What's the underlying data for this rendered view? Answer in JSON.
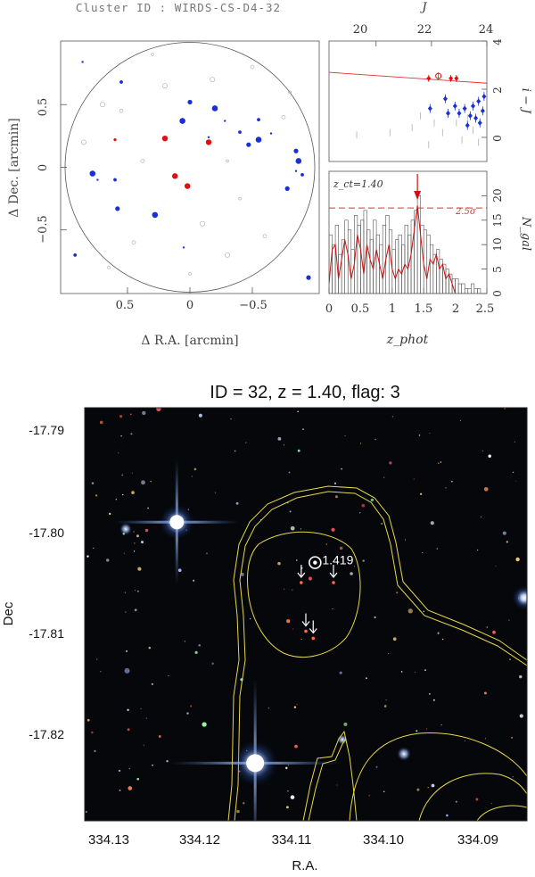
{
  "top_panel": {
    "cluster_label": "Cluster ID : WIRDS-CS-D4-32",
    "sky_map": {
      "xlabel": "Δ R.A. [arcmin]",
      "ylabel": "Δ Dec. [arcmin]",
      "xticks": [
        "0.5",
        "0",
        "−0.5"
      ],
      "yticks": [
        "0.5",
        "0",
        "−0.5"
      ]
    },
    "color_mag": {
      "top_xlabel": "J",
      "top_xticks": [
        "20",
        "22",
        "24"
      ],
      "ylabel": "i − J",
      "yticks": [
        "0",
        "2",
        "4"
      ]
    },
    "zhist": {
      "z_annotation": "z_ct=1.40",
      "sigma_label": "2.5σ",
      "xlabel": "z_phot",
      "ylabel": "N_gal",
      "xticks": [
        "0",
        "0.5",
        "1",
        "1.5",
        "2",
        "2.5"
      ],
      "yticks": [
        "0",
        "5",
        "10",
        "15",
        "20"
      ]
    }
  },
  "bottom_panel": {
    "title": "ID = 32, z = 1.40, flag: 3",
    "xlabel": "R.A.",
    "ylabel": "Dec",
    "xticks": [
      "334.13",
      "334.12",
      "334.11",
      "334.10",
      "334.09"
    ],
    "yticks": [
      "-17.79",
      "-17.80",
      "-17.81",
      "-17.82"
    ],
    "spec_z_label": "1.419"
  },
  "chart_data": [
    {
      "type": "scatter",
      "name_hint": "sky-map",
      "xlim": [
        1.0,
        -1.0
      ],
      "ylim": [
        -1.0,
        1.0
      ],
      "member_color": "#1a2fd6",
      "red_color": "#e01010",
      "field_color": "#aaaaaa",
      "members": [
        {
          "x": 0.86,
          "y": 0.84
        },
        {
          "x": 0.55,
          "y": 0.68
        },
        {
          "x": 0.0,
          "y": 0.52
        },
        {
          "x": -0.2,
          "y": 0.47
        },
        {
          "x": -0.28,
          "y": 0.37
        },
        {
          "x": -0.4,
          "y": 0.28
        },
        {
          "x": -0.47,
          "y": 0.18
        },
        {
          "x": -0.55,
          "y": 0.22
        },
        {
          "x": -0.65,
          "y": 0.27
        },
        {
          "x": -0.55,
          "y": 0.38
        },
        {
          "x": -0.85,
          "y": 0.13
        },
        {
          "x": -0.87,
          "y": 0.05
        },
        {
          "x": -0.85,
          "y": -0.03
        },
        {
          "x": -0.9,
          "y": -0.06
        },
        {
          "x": -0.78,
          "y": -0.17
        },
        {
          "x": 0.78,
          "y": -0.05
        },
        {
          "x": 0.74,
          "y": -0.1
        },
        {
          "x": 0.6,
          "y": -0.1
        },
        {
          "x": 0.58,
          "y": -0.33
        },
        {
          "x": 0.06,
          "y": 0.37
        },
        {
          "x": -0.15,
          "y": 0.24
        },
        {
          "x": 0.92,
          "y": -0.7
        },
        {
          "x": -0.95,
          "y": -0.88
        },
        {
          "x": 0.28,
          "y": -0.38
        },
        {
          "x": 0.05,
          "y": -0.64
        }
      ],
      "red_members": [
        {
          "x": 0.2,
          "y": 0.23
        },
        {
          "x": -0.15,
          "y": 0.2
        },
        {
          "x": 0.12,
          "y": -0.07
        },
        {
          "x": 0.02,
          "y": -0.15
        },
        {
          "x": 0.6,
          "y": 0.22
        }
      ],
      "field": [
        {
          "x": 0.3,
          "y": 0.9
        },
        {
          "x": -0.5,
          "y": 0.8
        },
        {
          "x": 0.7,
          "y": 0.5
        },
        {
          "x": -0.8,
          "y": 0.6
        },
        {
          "x": 0.45,
          "y": -0.6
        },
        {
          "x": -0.3,
          "y": -0.7
        },
        {
          "x": 0.0,
          "y": -0.85
        },
        {
          "x": -0.6,
          "y": -0.55
        },
        {
          "x": 0.85,
          "y": 0.2
        },
        {
          "x": -0.3,
          "y": 0.05
        },
        {
          "x": 0.38,
          "y": 0.05
        },
        {
          "x": -0.1,
          "y": -0.45
        },
        {
          "x": 0.65,
          "y": -0.8
        },
        {
          "x": -0.75,
          "y": 0.4
        },
        {
          "x": 0.2,
          "y": 0.65
        },
        {
          "x": -0.4,
          "y": -0.25
        },
        {
          "x": 0.55,
          "y": 0.45
        },
        {
          "x": -0.18,
          "y": 0.7
        }
      ]
    },
    {
      "type": "scatter",
      "name_hint": "color-magnitude",
      "xlim": [
        18.3,
        24.0
      ],
      "ylim": [
        -1.0,
        4.0
      ],
      "red_sequence": {
        "x": [
          18.3,
          24.0
        ],
        "y": [
          2.7,
          2.25
        ]
      },
      "red_points": [
        {
          "x": 21.9,
          "y": 2.45
        },
        {
          "x": 22.25,
          "y": 2.55
        },
        {
          "x": 22.7,
          "y": 2.45
        },
        {
          "x": 22.9,
          "y": 2.45
        }
      ],
      "blue_points": [
        {
          "x": 21.95,
          "y": 1.2
        },
        {
          "x": 22.5,
          "y": 1.6
        },
        {
          "x": 22.85,
          "y": 1.3
        },
        {
          "x": 23.0,
          "y": 1.0
        },
        {
          "x": 23.2,
          "y": 1.2
        },
        {
          "x": 23.4,
          "y": 0.9
        },
        {
          "x": 23.5,
          "y": 1.3
        },
        {
          "x": 23.6,
          "y": 0.8
        },
        {
          "x": 23.7,
          "y": 1.5
        },
        {
          "x": 23.75,
          "y": 0.6
        },
        {
          "x": 23.85,
          "y": 1.1
        },
        {
          "x": 23.9,
          "y": 1.7
        },
        {
          "x": 23.3,
          "y": 0.5
        },
        {
          "x": 22.6,
          "y": 1.0
        }
      ],
      "grey_points": [
        {
          "x": 19.3,
          "y": 0.1
        },
        {
          "x": 20.5,
          "y": 0.2
        },
        {
          "x": 21.3,
          "y": 0.4
        },
        {
          "x": 21.9,
          "y": -0.3
        },
        {
          "x": 22.4,
          "y": 0.2
        },
        {
          "x": 22.9,
          "y": 0.6
        },
        {
          "x": 23.1,
          "y": -0.1
        },
        {
          "x": 23.5,
          "y": 0.3
        },
        {
          "x": 23.7,
          "y": -0.2
        },
        {
          "x": 22.1,
          "y": 0.6
        },
        {
          "x": 23.3,
          "y": 0.8
        },
        {
          "x": 21.6,
          "y": 0.9
        }
      ]
    },
    {
      "type": "bar",
      "name_hint": "zphot-histogram",
      "xlim": [
        0.0,
        2.5
      ],
      "ylim": [
        0,
        25
      ],
      "sigma_level": 17.5,
      "bin_width": 0.05,
      "bin_starts": [
        0.0,
        0.05,
        0.1,
        0.15,
        0.2,
        0.25,
        0.3,
        0.35,
        0.4,
        0.45,
        0.5,
        0.55,
        0.6,
        0.65,
        0.7,
        0.75,
        0.8,
        0.85,
        0.9,
        0.95,
        1.0,
        1.05,
        1.1,
        1.15,
        1.2,
        1.25,
        1.3,
        1.35,
        1.4,
        1.45,
        1.5,
        1.55,
        1.6,
        1.65,
        1.7,
        1.75,
        1.8,
        1.85,
        1.9,
        1.95,
        2.0,
        2.05,
        2.1,
        2.15,
        2.2,
        2.25,
        2.3,
        2.35,
        2.4,
        2.45
      ],
      "counts": [
        12,
        10,
        14,
        8,
        11,
        15,
        13,
        9,
        16,
        14,
        15,
        17,
        13,
        11,
        15,
        12,
        10,
        14,
        16,
        13,
        9,
        11,
        12,
        10,
        14,
        12,
        15,
        17,
        20,
        14,
        13,
        12,
        10,
        8,
        9,
        7,
        6,
        5,
        4,
        3,
        3,
        2,
        2,
        1,
        1,
        2,
        1,
        1,
        0,
        0
      ],
      "smooth_x": [
        0.0,
        0.05,
        0.1,
        0.15,
        0.2,
        0.25,
        0.3,
        0.35,
        0.4,
        0.45,
        0.5,
        0.55,
        0.6,
        0.65,
        0.7,
        0.75,
        0.8,
        0.85,
        0.9,
        0.95,
        1.0,
        1.05,
        1.1,
        1.15,
        1.2,
        1.25,
        1.3,
        1.35,
        1.4,
        1.45,
        1.5,
        1.55,
        1.6,
        1.65,
        1.7,
        1.75,
        1.8,
        1.85,
        1.9,
        1.95,
        2.0
      ],
      "smooth_y": [
        2,
        9,
        10,
        3,
        7,
        11,
        8,
        3,
        6,
        12,
        9,
        4,
        10,
        7,
        5,
        9,
        6,
        3,
        7,
        10,
        5,
        3,
        5,
        4,
        6,
        5,
        8,
        13,
        18,
        12,
        6,
        3,
        7,
        6,
        8,
        5,
        6,
        3,
        4,
        2,
        0
      ],
      "peak_z": 1.4
    },
    {
      "type": "scatter",
      "name_hint": "sky-image",
      "xlim": [
        334.134,
        334.086
      ],
      "ylim": [
        -17.8285,
        -17.7877
      ],
      "bright_stars": [
        {
          "x": 334.124,
          "y": -17.799
        },
        {
          "x": 334.1155,
          "y": -17.8228
        }
      ],
      "spec_z_galaxy": {
        "x": 334.109,
        "y": -17.803,
        "z": 1.419
      },
      "member_arrows": [
        {
          "x": 334.1105,
          "y": -17.8048
        },
        {
          "x": 334.107,
          "y": -17.8048
        },
        {
          "x": 334.11,
          "y": -17.8096
        },
        {
          "x": 334.1092,
          "y": -17.8103
        }
      ]
    }
  ]
}
